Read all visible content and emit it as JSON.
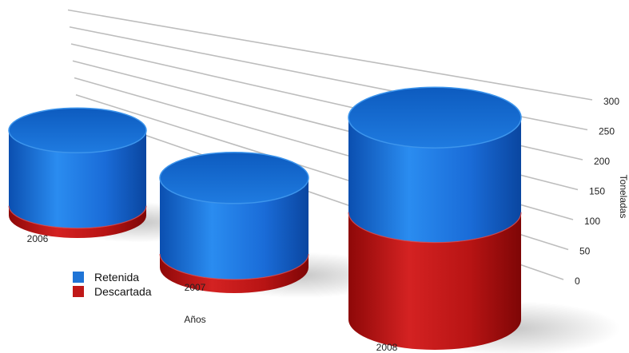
{
  "chart_data": {
    "type": "bar",
    "style": "3d-cylinder-stacked",
    "title": "",
    "xlabel": "Años",
    "ylabel": "Toneladas",
    "ylim": [
      0,
      300
    ],
    "yticks": [
      0,
      50,
      100,
      150,
      200,
      250,
      300
    ],
    "grid": true,
    "legend_position": "bottom-left",
    "categories": [
      "2006",
      "2007",
      "2008"
    ],
    "series": [
      {
        "name": "Retenida",
        "color": "#1f74d6",
        "values": [
          155,
          140,
          150
        ]
      },
      {
        "name": "Descartada",
        "color": "#c01818",
        "values": [
          20,
          25,
          170
        ]
      }
    ]
  }
}
